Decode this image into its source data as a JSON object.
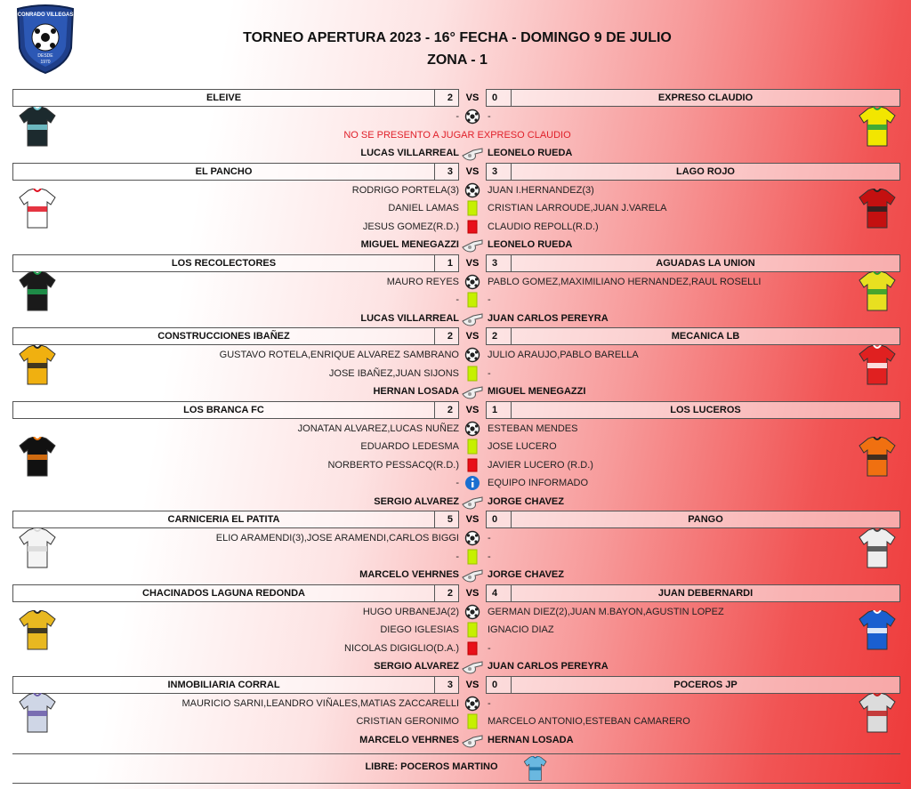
{
  "header": {
    "logo": {
      "name": "CONRADO VILLEGAS",
      "since": "DESDE",
      "year": "1970"
    },
    "title": "TORNEO APERTURA 2023 - 16° FECHA - DOMINGO 9 DE JULIO",
    "subtitle": "ZONA - 1"
  },
  "vs_label": "VS",
  "matches": [
    {
      "home": "ELEIVE",
      "home_score": "2",
      "away_score": "0",
      "away": "EXPRESO CLAUDIO",
      "rows": [
        {
          "icon": "goal",
          "left": "-",
          "right": "-"
        },
        {
          "icon": "note",
          "text": "NO SE PRESENTO A JUGAR EXPRESO CLAUDIO"
        }
      ],
      "referees": {
        "left": "LUCAS VILLARREAL",
        "right": "LEONELO RUEDA"
      }
    },
    {
      "home": "EL PANCHO",
      "home_score": "3",
      "away_score": "3",
      "away": "LAGO ROJO",
      "rows": [
        {
          "icon": "goal",
          "left": "RODRIGO PORTELA(3)",
          "right": "JUAN I.HERNANDEZ(3)"
        },
        {
          "icon": "yellow",
          "left": "DANIEL LAMAS",
          "right": "CRISTIAN LARROUDE,JUAN J.VARELA"
        },
        {
          "icon": "red",
          "left": "JESUS GOMEZ(R.D.)",
          "right": "CLAUDIO REPOLL(R.D.)"
        }
      ],
      "referees": {
        "left": "MIGUEL MENEGAZZI",
        "right": "LEONELO RUEDA"
      }
    },
    {
      "home": "LOS RECOLECTORES",
      "home_score": "1",
      "away_score": "3",
      "away": "AGUADAS LA UNION",
      "rows": [
        {
          "icon": "goal",
          "left": "MAURO REYES",
          "right": "PABLO GOMEZ,MAXIMILIANO HERNANDEZ,RAUL ROSELLI"
        },
        {
          "icon": "yellow",
          "left": "-",
          "right": "-"
        }
      ],
      "referees": {
        "left": "LUCAS VILLARREAL",
        "right": "JUAN CARLOS PEREYRA"
      }
    },
    {
      "home": "CONSTRUCCIONES IBAÑEZ",
      "home_score": "2",
      "away_score": "2",
      "away": "MECANICA LB",
      "rows": [
        {
          "icon": "goal",
          "left": "GUSTAVO ROTELA,ENRIQUE ALVAREZ SAMBRANO",
          "right": "JULIO ARAUJO,PABLO BARELLA"
        },
        {
          "icon": "yellow",
          "left": "JOSE IBAÑEZ,JUAN SIJONS",
          "right": "-"
        }
      ],
      "referees": {
        "left": "HERNAN LOSADA",
        "right": "MIGUEL MENEGAZZI"
      }
    },
    {
      "home": "LOS BRANCA FC",
      "home_score": "2",
      "away_score": "1",
      "away": "LOS LUCEROS",
      "rows": [
        {
          "icon": "goal",
          "left": "JONATAN ALVAREZ,LUCAS NUÑEZ",
          "right": "ESTEBAN MENDES"
        },
        {
          "icon": "yellow",
          "left": "EDUARDO LEDESMA",
          "right": "JOSE LUCERO"
        },
        {
          "icon": "red",
          "left": "NORBERTO PESSACQ(R.D.)",
          "right": "JAVIER LUCERO (R.D.)"
        },
        {
          "icon": "info",
          "left": "-",
          "right": "EQUIPO INFORMADO"
        }
      ],
      "referees": {
        "left": "SERGIO ALVAREZ",
        "right": "JORGE CHAVEZ"
      }
    },
    {
      "home": "CARNICERIA EL PATITA",
      "home_score": "5",
      "away_score": "0",
      "away": "PANGO",
      "rows": [
        {
          "icon": "goal",
          "left": "ELIO ARAMENDI(3),JOSE ARAMENDI,CARLOS BIGGI",
          "right": "-"
        },
        {
          "icon": "yellow",
          "left": "-",
          "right": "-"
        }
      ],
      "referees": {
        "left": "MARCELO VEHRNES",
        "right": "JORGE CHAVEZ"
      }
    },
    {
      "home": "CHACINADOS LAGUNA REDONDA",
      "home_score": "2",
      "away_score": "4",
      "away": "JUAN DEBERNARDI",
      "rows": [
        {
          "icon": "goal",
          "left": "HUGO URBANEJA(2)",
          "right": "GERMAN DIEZ(2),JUAN M.BAYON,AGUSTIN LOPEZ"
        },
        {
          "icon": "yellow",
          "left": "DIEGO IGLESIAS",
          "right": "IGNACIO DIAZ"
        },
        {
          "icon": "red",
          "left": "NICOLAS DIGIGLIO(D.A.)",
          "right": "-"
        }
      ],
      "referees": {
        "left": "SERGIO ALVAREZ",
        "right": "JUAN CARLOS PEREYRA"
      }
    },
    {
      "home": "INMOBILIARIA CORRAL",
      "home_score": "3",
      "away_score": "0",
      "away": "POCEROS JP",
      "rows": [
        {
          "icon": "goal",
          "left": "MAURICIO SARNI,LEANDRO VIÑALES,MATIAS ZACCARELLI",
          "right": "-"
        },
        {
          "icon": "yellow",
          "left": "CRISTIAN GERONIMO",
          "right": "MARCELO ANTONIO,ESTEBAN CAMARERO"
        }
      ],
      "referees": {
        "left": "MARCELO VEHRNES",
        "right": "HERNAN LOSADA"
      }
    }
  ],
  "footer": {
    "free_team": "LIBRE: POCEROS MARTINO"
  }
}
